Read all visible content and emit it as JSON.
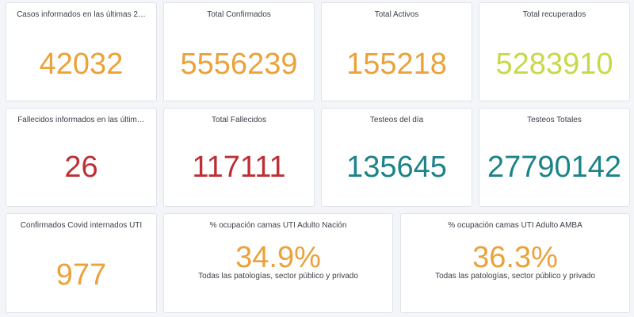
{
  "colors": {
    "orange": "#eba23b",
    "yellow_green": "#c9d84a",
    "red": "#bd2f34",
    "teal": "#1c8388"
  },
  "row1": {
    "casos": {
      "title": "Casos informados en las últimas 2…",
      "value": "42032"
    },
    "confirmados": {
      "title": "Total Confirmados",
      "value": "5556239"
    },
    "activos": {
      "title": "Total Activos",
      "value": "155218"
    },
    "recuperados": {
      "title": "Total recuperados",
      "value": "5283910"
    }
  },
  "row2": {
    "fallecidos_ultimas": {
      "title": "Fallecidos informados en las últim…",
      "value": "26"
    },
    "fallecidos_total": {
      "title": "Total Fallecidos",
      "value": "117111"
    },
    "testeos_dia": {
      "title": "Testeos del día",
      "value": "135645"
    },
    "testeos_totales": {
      "title": "Testeos Totales",
      "value": "27790142"
    }
  },
  "row3": {
    "internados_uti": {
      "title": "Confirmados Covid internados UTI",
      "value": "977"
    },
    "uti_nacion": {
      "title": "% ocupación camas UTI Adulto Nación",
      "value": "34.9%",
      "subtitle": "Todas las patologías, sector público y privado"
    },
    "uti_amba": {
      "title": "% ocupación camas UTI Adulto AMBA",
      "value": "36.3%",
      "subtitle": "Todas las patologías, sector público y privado"
    }
  }
}
